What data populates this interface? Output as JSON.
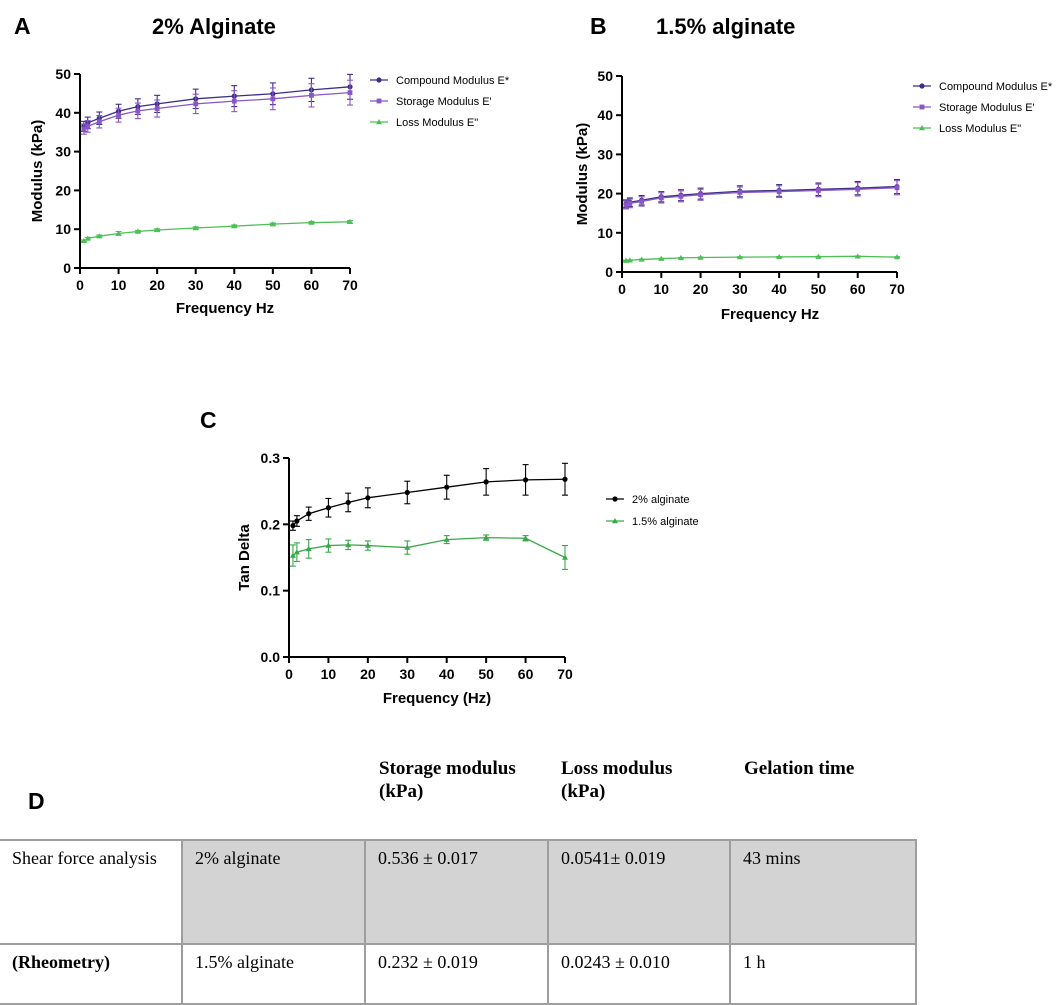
{
  "colors": {
    "compound": "#3b2f86",
    "storage": "#8a55c4",
    "loss": "#4cbf55",
    "alg2": "#000000",
    "alg15": "#3aa84a",
    "table_shade": "#d3d3d3",
    "table_border": "#9e9e9e"
  },
  "chart_data": [
    {
      "panel": "A",
      "type": "line",
      "title": "2% Alginate",
      "xlabel": "Frequency Hz",
      "ylabel": "Modulus (kPa)",
      "xlim": [
        0,
        70
      ],
      "ylim": [
        0,
        50
      ],
      "x_ticks": [
        0,
        10,
        20,
        30,
        40,
        50,
        60,
        70
      ],
      "y_ticks": [
        0,
        10,
        20,
        30,
        40,
        50
      ],
      "x": [
        1,
        2,
        5,
        10,
        15,
        20,
        30,
        40,
        50,
        60,
        70
      ],
      "legend_position": "right",
      "series": [
        {
          "name": "Compound Modulus E*",
          "color_key": "compound",
          "marker": "circle",
          "values": [
            36.5,
            37.4,
            38.6,
            40.4,
            41.6,
            42.3,
            43.6,
            44.3,
            44.9,
            45.9,
            46.7
          ],
          "errors": [
            1.3,
            1.5,
            1.6,
            1.8,
            2.0,
            2.2,
            2.5,
            2.7,
            2.8,
            3.0,
            3.2
          ]
        },
        {
          "name": "Storage Modulus E'",
          "color_key": "storage",
          "marker": "square",
          "values": [
            35.8,
            36.5,
            37.7,
            39.4,
            40.5,
            41.1,
            42.3,
            43.0,
            43.6,
            44.5,
            45.2
          ],
          "errors": [
            1.3,
            1.5,
            1.6,
            1.8,
            2.0,
            2.2,
            2.5,
            2.7,
            2.8,
            3.0,
            3.2
          ]
        },
        {
          "name": "Loss Modulus E\"",
          "color_key": "loss",
          "marker": "triangle",
          "values": [
            7.0,
            7.6,
            8.2,
            8.9,
            9.4,
            9.8,
            10.3,
            10.8,
            11.3,
            11.7,
            11.9
          ],
          "errors": [
            0.2,
            0.3,
            0.3,
            0.5,
            0.3,
            0.3,
            0.3,
            0.3,
            0.3,
            0.3,
            0.3
          ]
        }
      ]
    },
    {
      "panel": "B",
      "type": "line",
      "title": "1.5% alginate",
      "xlabel": "Frequency Hz",
      "ylabel": "Modulus (kPa)",
      "xlim": [
        0,
        70
      ],
      "ylim": [
        0,
        50
      ],
      "x_ticks": [
        0,
        10,
        20,
        30,
        40,
        50,
        60,
        70
      ],
      "y_ticks": [
        0,
        10,
        20,
        30,
        40,
        50
      ],
      "x": [
        1,
        2,
        5,
        10,
        15,
        20,
        30,
        40,
        50,
        60,
        70
      ],
      "legend_position": "right",
      "series": [
        {
          "name": "Compound Modulus E*",
          "color_key": "compound",
          "marker": "circle",
          "values": [
            17.4,
            17.8,
            18.3,
            19.2,
            19.6,
            20.0,
            20.6,
            20.8,
            21.1,
            21.4,
            21.8
          ],
          "errors": [
            1.0,
            1.1,
            1.2,
            1.3,
            1.4,
            1.4,
            1.4,
            1.5,
            1.6,
            1.7,
            1.8
          ]
        },
        {
          "name": "Storage Modulus E'",
          "color_key": "storage",
          "marker": "square",
          "values": [
            17.1,
            17.5,
            18.0,
            18.9,
            19.3,
            19.7,
            20.3,
            20.5,
            20.8,
            21.1,
            21.5
          ],
          "errors": [
            1.0,
            1.1,
            1.2,
            1.3,
            1.4,
            1.4,
            1.4,
            1.5,
            1.6,
            1.7,
            1.8
          ]
        },
        {
          "name": "Loss Modulus E\"",
          "color_key": "loss",
          "marker": "triangle",
          "values": [
            2.9,
            3.0,
            3.2,
            3.4,
            3.6,
            3.7,
            3.8,
            3.85,
            3.9,
            4.0,
            3.8
          ],
          "errors": [
            0.1,
            0.1,
            0.1,
            0.1,
            0.1,
            0.1,
            0.1,
            0.1,
            0.1,
            0.1,
            0.1
          ]
        }
      ]
    },
    {
      "panel": "C",
      "type": "line",
      "title": "",
      "xlabel": "Frequency (Hz)",
      "ylabel": "Tan Delta",
      "xlim": [
        0,
        70
      ],
      "ylim": [
        0,
        0.3
      ],
      "x_ticks": [
        0,
        10,
        20,
        30,
        40,
        50,
        60,
        70
      ],
      "y_ticks": [
        0.0,
        0.1,
        0.2,
        0.3
      ],
      "x": [
        1,
        2,
        5,
        10,
        15,
        20,
        30,
        40,
        50,
        60,
        70
      ],
      "legend_position": "right",
      "series": [
        {
          "name": "2% alginate",
          "color_key": "alg2",
          "marker": "circle",
          "values": [
            0.198,
            0.205,
            0.216,
            0.225,
            0.233,
            0.24,
            0.248,
            0.256,
            0.264,
            0.267,
            0.268
          ],
          "errors": [
            0.007,
            0.008,
            0.01,
            0.014,
            0.014,
            0.015,
            0.017,
            0.018,
            0.02,
            0.023,
            0.024
          ]
        },
        {
          "name": "1.5% alginate",
          "color_key": "alg15",
          "marker": "triangle",
          "values": [
            0.153,
            0.158,
            0.163,
            0.168,
            0.169,
            0.168,
            0.165,
            0.177,
            0.18,
            0.179,
            0.15
          ],
          "errors": [
            0.016,
            0.014,
            0.014,
            0.01,
            0.007,
            0.007,
            0.01,
            0.006,
            0.004,
            0.004,
            0.018
          ]
        }
      ]
    }
  ],
  "panel_d": {
    "letter": "D",
    "headers": [
      "Storage modulus\n(kPa)",
      "Loss modulus\n(kPa)",
      "Gelation time"
    ],
    "rows": [
      {
        "label": "Shear force analysis",
        "cells": [
          "2% alginate",
          "0.536 ± 0.017",
          "0.0541± 0.019",
          "43 mins"
        ]
      },
      {
        "label": "(Rheometry)",
        "cells": [
          "1.5% alginate",
          "0.232 ± 0.019",
          "0.0243 ± 0.010",
          "1 h"
        ]
      }
    ]
  }
}
